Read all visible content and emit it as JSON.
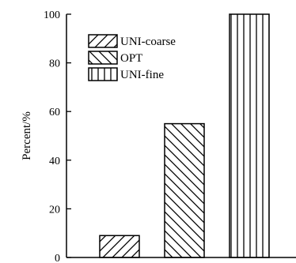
{
  "chart_data": {
    "type": "bar",
    "title": "",
    "xlabel": "",
    "ylabel": "Percent/%",
    "ylim": [
      0,
      100
    ],
    "yticks": [
      0,
      20,
      40,
      60,
      80,
      100
    ],
    "grid": false,
    "legend_position": "upper-left",
    "series": [
      {
        "name": "UNI-coarse",
        "value": 9,
        "pattern": "diagonal-up"
      },
      {
        "name": "OPT",
        "value": 55,
        "pattern": "diagonal-down"
      },
      {
        "name": "UNI-fine",
        "value": 100,
        "pattern": "vertical"
      }
    ]
  }
}
